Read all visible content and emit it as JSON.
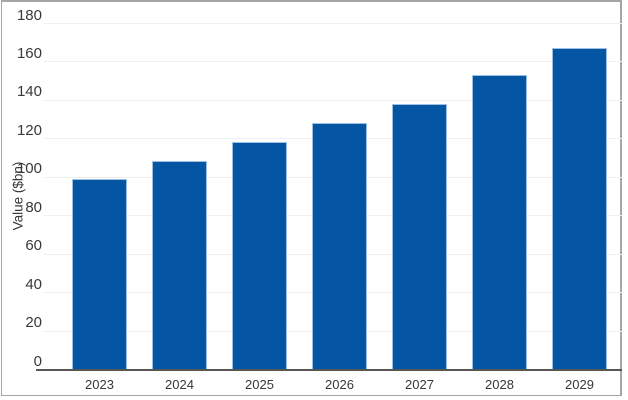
{
  "chart_data": {
    "type": "bar",
    "title": "",
    "categories": [
      "2023",
      "2024",
      "2025",
      "2026",
      "2027",
      "2028",
      "2029"
    ],
    "values": [
      99,
      108,
      118,
      128,
      138,
      153,
      167
    ],
    "xlabel": "",
    "ylabel": "Value ($bn)",
    "ylim": [
      0,
      180
    ],
    "ytick_step": 20,
    "ytick_labels": [
      "0",
      "20",
      "40",
      "60",
      "80",
      "100",
      "120",
      "140",
      "160",
      "180"
    ],
    "grid": "horizontal-only",
    "legend": "none",
    "colors": {
      "bar_fill": "#0455a4",
      "bar_edge": "#9dc0e0",
      "gridline": "#f0f0f0",
      "axis_line": "#575757",
      "tick_label": "#383838",
      "frame_border": "#a5a5a5",
      "background": "#ffffff"
    }
  }
}
